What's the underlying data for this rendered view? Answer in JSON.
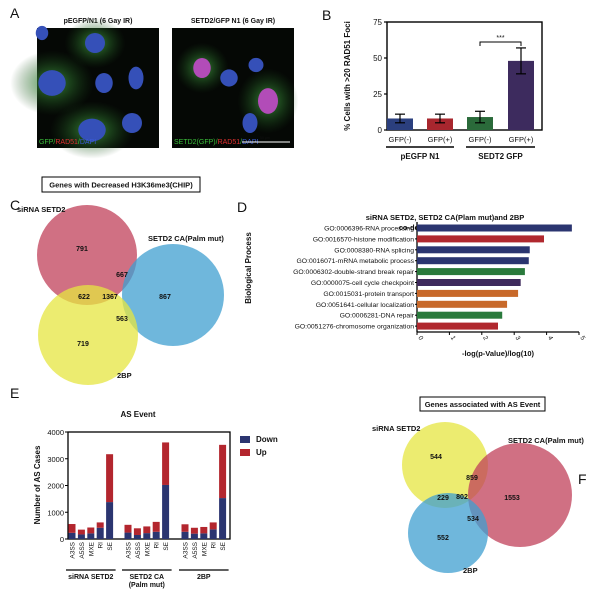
{
  "panel_labels": [
    "A",
    "B",
    "C",
    "D",
    "E",
    "F"
  ],
  "panel_a": {
    "images": [
      {
        "title": "pEGFP/N1 (6 Gay IR)",
        "channels": [
          {
            "text": "GFP",
            "color": "#3bbf3b"
          },
          {
            "text": "/",
            "color": "#3bbf3b"
          },
          {
            "text": "RAD51",
            "color": "#e03030"
          },
          {
            "text": "/",
            "color": "#3bbf3b"
          },
          {
            "text": "DAPI",
            "color": "#3a5bd8"
          }
        ]
      },
      {
        "title": "SETD2/GFP N1 (6 Gay IR)",
        "channels": [
          {
            "text": "SETD2(GFP)",
            "color": "#3bbf3b"
          },
          {
            "text": "/",
            "color": "#3bbf3b"
          },
          {
            "text": "RAD51",
            "color": "#e03030"
          },
          {
            "text": "/",
            "color": "#3bbf3b"
          },
          {
            "text": "DAPI",
            "color": "#3a5bd8"
          }
        ],
        "scale_bar": "50 μm"
      }
    ]
  },
  "chart_data": [
    {
      "id": "B",
      "type": "bar",
      "ylabel": "% Cells with >20 RAD51 Foci",
      "ylim": [
        0,
        75
      ],
      "yticks": [
        0,
        25,
        50,
        75
      ],
      "categories": [
        "GFP(-)",
        "GFP(+)",
        "GFP(-)",
        "GFP(+)"
      ],
      "values": [
        8,
        8,
        9,
        48
      ],
      "errors": [
        3,
        3,
        4,
        9
      ],
      "colors": [
        "#2b3f7e",
        "#a8262e",
        "#2a6a3a",
        "#3d2b5e"
      ],
      "groups": [
        {
          "label": "pEGFP N1",
          "span": [
            0,
            1
          ]
        },
        {
          "label": "SEDT2 GFP",
          "span": [
            2,
            3
          ]
        }
      ],
      "annotation": {
        "text": "***",
        "between": [
          2,
          3
        ]
      }
    },
    {
      "id": "C",
      "type": "venn",
      "title": "Genes with Decreased H3K36me3(CHIP)",
      "sets": [
        {
          "label": "siRNA SETD2",
          "color": "#c0405a"
        },
        {
          "label": "SETD2 CA(Palm mut)",
          "color": "#3f9fd0"
        },
        {
          "label": "2BP",
          "color": "#e6e640"
        }
      ],
      "regions": {
        "siRNA_only": 791,
        "siRNA_CA": 667,
        "siRNA_2BP": 622,
        "all": 1367,
        "CA_only": 867,
        "CA_2BP": 563,
        "2BP_only": 719
      }
    },
    {
      "id": "D",
      "type": "bar",
      "orientation": "horizontal",
      "title": [
        "siRNA SETD2, SETD2 CA(Plam mut)and 2BP",
        "co-decrease region genes"
      ],
      "xlabel": "-log(p-Value)/log(10)",
      "ylabel": "Biological Process",
      "xlim": [
        0,
        5
      ],
      "xticks": [
        0,
        1,
        2,
        3,
        4,
        5
      ],
      "categories": [
        "GO:0006396-RNA processing",
        "GO:0016570-histone modification",
        "GO:0008380-RNA splicing",
        "GO:0016071-mRNA metabolic process",
        "GO:0006302-double-strand break repair",
        "GO:0000075-cell cycle checkpoint",
        "GO:0015031-protein transport",
        "GO:0051641-cellular localization",
        "GO:0006281-DNA repair",
        "GO:0051276-chromosome organization"
      ],
      "values": [
        4.78,
        3.92,
        3.48,
        3.45,
        3.33,
        3.2,
        3.12,
        2.78,
        2.63,
        2.5
      ],
      "colors": [
        "#2b3570",
        "#b0282e",
        "#2b3570",
        "#2b3570",
        "#2a7a3c",
        "#3f2a5c",
        "#c8692a",
        "#c8692a",
        "#2a7a3c",
        "#b0282e"
      ]
    },
    {
      "id": "E",
      "type": "bar",
      "stacked": true,
      "title": "AS Event",
      "ylabel": "Number of AS Cases",
      "ylim": [
        0,
        4000
      ],
      "yticks": [
        0,
        1000,
        2000,
        3000,
        4000
      ],
      "categories": [
        "A3SS",
        "A5SS",
        "MXE",
        "RI",
        "SE"
      ],
      "groups": [
        {
          "label": "siRNA SETD2",
          "down": [
            230,
            170,
            210,
            420,
            1380
          ],
          "up": [
            330,
            180,
            220,
            200,
            1790
          ]
        },
        {
          "label": "SETD2 CA",
          "label2": "(Palm mut)",
          "down": [
            240,
            150,
            220,
            270,
            2020
          ],
          "up": [
            290,
            250,
            250,
            370,
            1590
          ]
        },
        {
          "label": "2BP",
          "down": [
            270,
            200,
            210,
            360,
            1530
          ],
          "up": [
            280,
            220,
            240,
            260,
            1990
          ]
        }
      ],
      "series": [
        {
          "name": "Down",
          "color": "#2b3570"
        },
        {
          "name": "Up",
          "color": "#b3262e"
        }
      ],
      "legend": "right"
    },
    {
      "id": "F",
      "type": "venn",
      "title": "Genes associated with AS Event",
      "sets": [
        {
          "label": "siRNA SETD2",
          "color": "#e6e640"
        },
        {
          "label": "SETD2 CA(Palm mut)",
          "color": "#c0405a"
        },
        {
          "label": "2BP",
          "color": "#3f9fd0"
        }
      ],
      "regions": {
        "siRNA_only": 544,
        "siRNA_CA": 859,
        "siRNA_2BP": 229,
        "all": 802,
        "CA_only": 1553,
        "CA_2BP": 534,
        "2BP_only": 552
      }
    }
  ]
}
